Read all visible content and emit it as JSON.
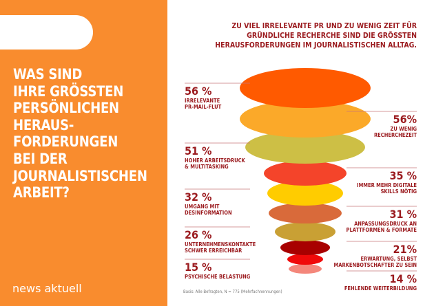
{
  "brand": "news aktuell",
  "question": "WAS SIND\nIHRE GRÖSSTEN\nPERSÖNLICHEN\nHERAUS-\nFORDERUNGEN\nBEI DER\nJOURNALISTISCHEN\nARBEIT?",
  "headline": "ZU VIEL IRRELEVANTE PR UND ZU WENIG ZEIT FÜR\nGRÜNDLICHE RECHERCHE SIND DIE GRÖSSTEN\nHERAUSFORDERUNGEN IM JOURNALISTISCHEN ALLTAG.",
  "basis": "Basis: Alle Befragten, N = 775 (Mehrfachnennungen)",
  "colors": {
    "panel": "#F98C2E",
    "text": "#9B1B1F"
  },
  "chart_data": {
    "type": "funnel",
    "unit": "%",
    "items": [
      {
        "label": "IRRELEVANTE\nPR-MAIL-FLUT",
        "value": 56,
        "display": "56 %",
        "side": "left",
        "color": "#FF5A00"
      },
      {
        "label": "ZU WENIG\nRECHERCHEZEIT",
        "value": 56,
        "display": "56%",
        "side": "right",
        "color": "#FBA929"
      },
      {
        "label": "HOHER ARBEITSDRUCK\n& MULTITASKING",
        "value": 51,
        "display": "51 %",
        "side": "left",
        "color": "#CDBF45"
      },
      {
        "label": "IMMER MEHR DIGITALE\nSKILLS NÖTIG",
        "value": 35,
        "display": "35 %",
        "side": "right",
        "color": "#F4442A"
      },
      {
        "label": "UMGANG MIT\nDESINFORMATION",
        "value": 32,
        "display": "32 %",
        "side": "left",
        "color": "#FFCC00"
      },
      {
        "label": "ANPASSUNGSDRUCK AN\nPLATTFORMEN & FORMATE",
        "value": 31,
        "display": "31 %",
        "side": "right",
        "color": "#D96A3A"
      },
      {
        "label": "UNTERNEHMENSKONTAKTE\nSCHWER ERREICHBAR",
        "value": 26,
        "display": "26 %",
        "side": "left",
        "color": "#C9A034"
      },
      {
        "label": "ERWARTUNG, SELBST\nMARKENBOTSCHAFTER ZU SEIN",
        "value": 21,
        "display": "21%",
        "side": "right",
        "color": "#A80000"
      },
      {
        "label": "PSYCHISCHE BELASTUNG",
        "value": 15,
        "display": "15 %",
        "side": "left",
        "color": "#F00A0A"
      },
      {
        "label": "FEHLENDE WEITERBILDUNG",
        "value": 14,
        "display": "14 %",
        "side": "right",
        "color": "#F4877B"
      }
    ]
  }
}
